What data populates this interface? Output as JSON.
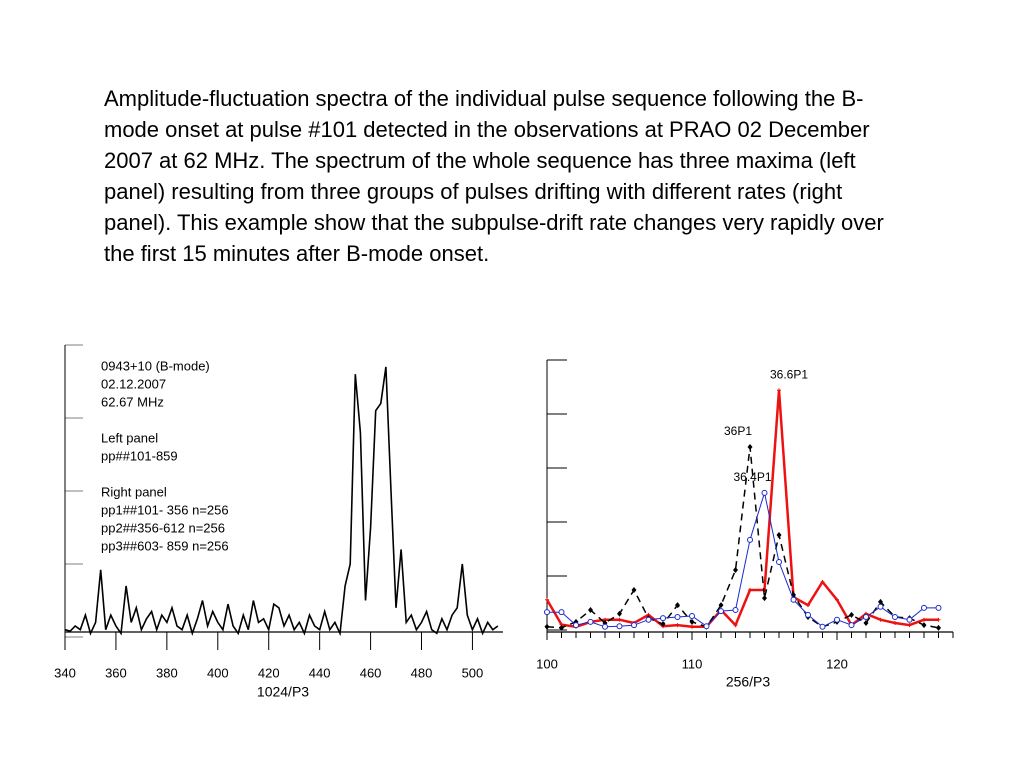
{
  "caption": "Amplitude-fluctuation spectra of the individual pulse sequence following the B-mode onset at pulse #101 detected in the observations at PRAO 02 December 2007 at 62 MHz. The spectrum of the whole sequence has three maxima (left panel) resulting from three groups of pulses drifting with different rates (right panel). This example show that the subpulse-drift rate changes very rapidly over the first 15 minutes after B-mode onset.",
  "chart_data": [
    {
      "type": "line",
      "xlabel": "1024/P3",
      "annotations": [
        [
          "0943+10 (B-mode)",
          "02.12.2007",
          "62.67 MHz"
        ],
        [
          "Left panel",
          "pp##101-859"
        ],
        [
          "Right panel",
          "pp1##101- 356 n=256",
          "pp2##356-612 n=256",
          "pp3##603- 859 n=256"
        ]
      ],
      "x": [
        340,
        342,
        344,
        346,
        348,
        350,
        352,
        354,
        356,
        358,
        360,
        362,
        364,
        366,
        368,
        370,
        372,
        374,
        376,
        378,
        380,
        382,
        384,
        386,
        388,
        390,
        392,
        394,
        396,
        398,
        400,
        402,
        404,
        406,
        408,
        410,
        412,
        414,
        416,
        418,
        420,
        422,
        424,
        426,
        428,
        430,
        432,
        434,
        436,
        438,
        440,
        442,
        444,
        446,
        448,
        450,
        452,
        454,
        456,
        458,
        460,
        462,
        464,
        466,
        468,
        470,
        472,
        474,
        476,
        478,
        480,
        482,
        484,
        486,
        488,
        490,
        492,
        494,
        496,
        498,
        500,
        502,
        504,
        506,
        508,
        510
      ],
      "values": [
        0.1,
        0.08,
        0.15,
        0.1,
        0.3,
        0.05,
        0.2,
        0.92,
        0.1,
        0.3,
        0.15,
        0.05,
        0.7,
        0.2,
        0.4,
        0.1,
        0.25,
        0.35,
        0.1,
        0.3,
        0.2,
        0.4,
        0.15,
        0.1,
        0.3,
        0.05,
        0.25,
        0.5,
        0.15,
        0.35,
        0.2,
        0.1,
        0.45,
        0.15,
        0.05,
        0.3,
        0.1,
        0.5,
        0.2,
        0.25,
        0.1,
        0.45,
        0.4,
        0.15,
        0.3,
        0.1,
        0.2,
        0.05,
        0.3,
        0.15,
        0.1,
        0.35,
        0.1,
        0.2,
        0.05,
        0.7,
        1.0,
        3.6,
        2.8,
        0.5,
        1.5,
        3.1,
        3.2,
        3.7,
        2.0,
        0.4,
        1.2,
        0.2,
        0.3,
        0.1,
        0.2,
        0.35,
        0.1,
        0.05,
        0.25,
        0.1,
        0.3,
        0.4,
        1.0,
        0.3,
        0.1,
        0.25,
        0.05,
        0.2,
        0.1,
        0.15
      ],
      "color": "#000000",
      "xlim": [
        340,
        512
      ],
      "xticks": [
        340,
        360,
        380,
        400,
        420,
        440,
        460,
        480,
        500
      ],
      "ylim": [
        0,
        4
      ],
      "yticks": [
        0,
        1,
        2,
        3,
        4
      ]
    },
    {
      "type": "line",
      "xlabel": "256/P3",
      "x": [
        100,
        101,
        102,
        103,
        104,
        105,
        106,
        107,
        108,
        109,
        110,
        111,
        112,
        113,
        114,
        115,
        116,
        117,
        118,
        119,
        120,
        121,
        122,
        123,
        124,
        125,
        126,
        127
      ],
      "series": [
        {
          "name": "36.6P1",
          "color": "#ee1111",
          "line_width": 2.5,
          "dash": false,
          "marker": "plus",
          "values": [
            0.56,
            0.1,
            0.06,
            0.15,
            0.19,
            0.19,
            0.13,
            0.28,
            0.07,
            0.09,
            0.06,
            0.06,
            0.37,
            0.09,
            0.74,
            0.74,
            4.44,
            0.61,
            0.46,
            0.89,
            0.56,
            0.09,
            0.3,
            0.19,
            0.13,
            0.09,
            0.19,
            0.19
          ]
        },
        {
          "name": "36P1",
          "color": "#000000",
          "line_width": 1.5,
          "dash": true,
          "marker": "diamond",
          "values": [
            0.06,
            0.04,
            0.15,
            0.37,
            0.13,
            0.3,
            0.74,
            0.22,
            0.11,
            0.46,
            0.15,
            0.06,
            0.46,
            1.11,
            3.39,
            0.59,
            1.76,
            0.65,
            0.24,
            0.06,
            0.15,
            0.28,
            0.13,
            0.52,
            0.24,
            0.22,
            0.09,
            0.04
          ]
        },
        {
          "name": "36.4P1",
          "color": "#1a2ad0",
          "line_width": 1,
          "dash": false,
          "marker": "circle",
          "values": [
            0.33,
            0.33,
            0.09,
            0.15,
            0.06,
            0.07,
            0.09,
            0.19,
            0.22,
            0.24,
            0.26,
            0.07,
            0.35,
            0.37,
            1.67,
            2.54,
            1.26,
            0.56,
            0.28,
            0.06,
            0.19,
            0.09,
            0.24,
            0.43,
            0.24,
            0.19,
            0.41,
            0.41
          ]
        }
      ],
      "xlim": [
        100,
        128
      ],
      "xticks": [
        100,
        110,
        120
      ],
      "x_minor_step": 1,
      "ylim": [
        0,
        5
      ],
      "yticks": [
        0,
        1,
        2,
        3,
        4,
        5
      ]
    }
  ]
}
